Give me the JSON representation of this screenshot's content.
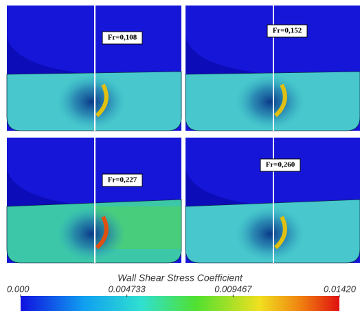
{
  "panels": [
    {
      "label": "Fr=0,108"
    },
    {
      "label": "Fr=0,152"
    },
    {
      "label": "Fr=0,227"
    },
    {
      "label": "Fr=0,260"
    }
  ],
  "colorbar": {
    "title": "Wall Shear Stress Coefficient",
    "ticks": [
      {
        "value": 0,
        "label": "0.000"
      },
      {
        "value": 0.004733,
        "label": "0.004733"
      },
      {
        "value": 0.009467,
        "label": "0.009467"
      },
      {
        "value": 0.0142,
        "label": "0.01420"
      }
    ]
  }
}
